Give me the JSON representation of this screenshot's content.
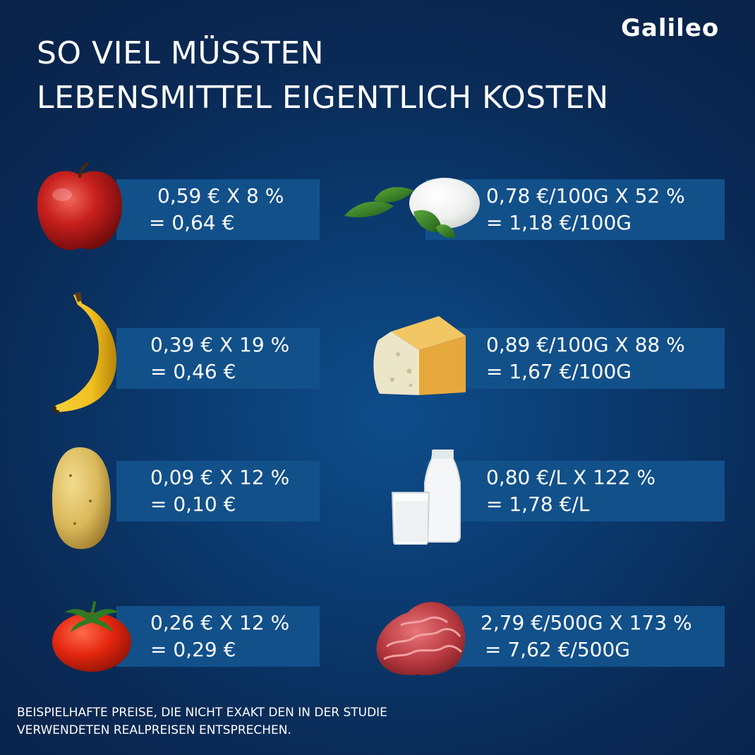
{
  "brand": {
    "logo": "Galileo"
  },
  "title": {
    "line1": "SO VIEL MÜSSTEN",
    "line2": "LEBENSMITTEL EIGENTLICH KOSTEN"
  },
  "items": [
    {
      "icon": "apple-icon",
      "calc": "0,59 € X 8 %",
      "result": "= 0,64 €"
    },
    {
      "icon": "mozzarella-icon",
      "calc": "0,78 €/100G X 52 %",
      "result": "= 1,18 €/100G"
    },
    {
      "icon": "banana-icon",
      "calc": "0,39 € X 19 %",
      "result": "= 0,46 €"
    },
    {
      "icon": "cheese-icon",
      "calc": "0,89 €/100G X 88 %",
      "result": "= 1,67 €/100G"
    },
    {
      "icon": "potato-icon",
      "calc": "0,09 € X 12 %",
      "result": "= 0,10 €"
    },
    {
      "icon": "milk-icon",
      "calc": "0,80 €/L X 122 %",
      "result": "= 1,78 €/L"
    },
    {
      "icon": "tomato-icon",
      "calc": "0,26 € X 12 %",
      "result": "= 0,29 €"
    },
    {
      "icon": "minced-meat-icon",
      "calc": "2,79 €/500G X 173 %",
      "result": "= 7,62 €/500G"
    }
  ],
  "footnote": {
    "line1": "BEISPIELHAFTE PREISE, DIE NICHT EXAKT DEN IN DER STUDIE",
    "line2": "VERWENDETEN REALPREISEN ENTSPRECHEN."
  },
  "colors": {
    "background": "#0a2b57",
    "box": "#12508a",
    "text": "#ffffff"
  }
}
